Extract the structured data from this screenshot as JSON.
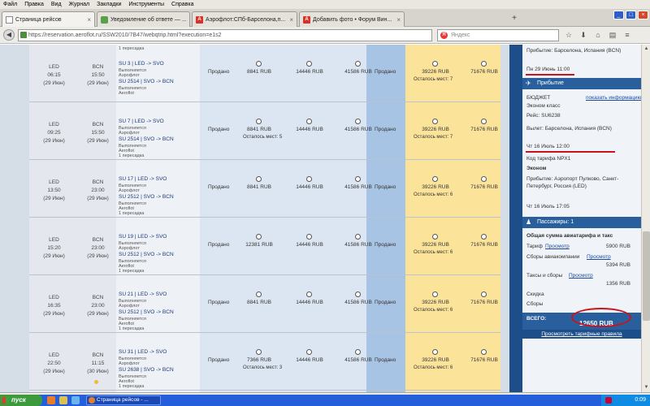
{
  "menu": [
    "Файл",
    "Правка",
    "Вид",
    "Журнал",
    "Закладки",
    "Инструменты",
    "Справка"
  ],
  "tabs": [
    {
      "label": "Страница рейсов",
      "icon": "page-icon"
    },
    {
      "label": "Уведомление об ответе — ...",
      "icon": "email-icon"
    },
    {
      "label": "Аэрофлот:СПб-Барселона,п...",
      "icon": "aeroflot-icon"
    },
    {
      "label": "Добавить фото • Форум Вин...",
      "icon": "aeroflot-icon"
    }
  ],
  "address": {
    "url": "https://reservation.aeroflot.ru/SSW2010/7B47/webqtrip.html?execution=e1s2",
    "search_placeholder": "Яндекс"
  },
  "flights": [
    {
      "dep_airport": "LED",
      "dep_time": "06:15",
      "dep_date": "(29 Июн)",
      "arr_airport": "BCN",
      "arr_time": "15:50",
      "arr_date": "(29 Июн)",
      "transfer": "1 пересадка",
      "segments": [
        {
          "flight": "SU 3",
          "route": "LED -> SVO",
          "op1": "Выполняется",
          "op2": "Аэрофлот"
        },
        {
          "flight": "SU 2514",
          "route": "SVO -> BCN",
          "op1": "Выполняется",
          "op2": "Aeroflot"
        }
      ],
      "sold": "Продано",
      "p1": "8841 RUB",
      "p2": "14446 RUB",
      "p3": "41586 RUB",
      "p4": "Продано",
      "p5": "39226 RUB",
      "p5_seats": "Осталось мест: 7",
      "p6": "71676 RUB"
    },
    {
      "dep_airport": "LED",
      "dep_time": "09:25",
      "dep_date": "(29 Июн)",
      "arr_airport": "BCN",
      "arr_time": "15:50",
      "arr_date": "(29 Июн)",
      "transfer": "1 пересадка",
      "segments": [
        {
          "flight": "SU 7",
          "route": "LED -> SVO",
          "op1": "Выполняется",
          "op2": "Аэрофлот"
        },
        {
          "flight": "SU 2514",
          "route": "SVO -> BCN",
          "op1": "Выполняется",
          "op2": "Aeroflot"
        }
      ],
      "sold": "Продано",
      "p1": "8841 RUB",
      "p1_seats": "Осталось мест: 5",
      "p2": "14446 RUB",
      "p3": "41586 RUB",
      "p4": "Продано",
      "p5": "39226 RUB",
      "p5_seats": "Осталось мест: 7",
      "p6": "71676 RUB"
    },
    {
      "dep_airport": "LED",
      "dep_time": "13:50",
      "dep_date": "(29 Июн)",
      "arr_airport": "BCN",
      "arr_time": "23:00",
      "arr_date": "(29 Июн)",
      "transfer": "1 пересадка",
      "segments": [
        {
          "flight": "SU 17",
          "route": "LED -> SVO",
          "op1": "Выполняется",
          "op2": "Аэрофлот"
        },
        {
          "flight": "SU 2512",
          "route": "SVO -> BCN",
          "op1": "Выполняется",
          "op2": "Aeroflot"
        }
      ],
      "sold": "Продано",
      "p1": "8841 RUB",
      "p2": "14446 RUB",
      "p3": "41586 RUB",
      "p4": "Продано",
      "p5": "39226 RUB",
      "p5_seats": "Осталось мест: 6",
      "p6": "71676 RUB"
    },
    {
      "dep_airport": "LED",
      "dep_time": "15:20",
      "dep_date": "(29 Июн)",
      "arr_airport": "BCN",
      "arr_time": "23:00",
      "arr_date": "(29 Июн)",
      "transfer": "1 пересадка",
      "segments": [
        {
          "flight": "SU 19",
          "route": "LED -> SVO",
          "op1": "Выполняется",
          "op2": "Аэрофлот"
        },
        {
          "flight": "SU 2512",
          "route": "SVO -> BCN",
          "op1": "Выполняется",
          "op2": "Aeroflot"
        }
      ],
      "sold": "Продано",
      "p1": "12381 RUB",
      "p2": "14446 RUB",
      "p3": "41586 RUB",
      "p4": "Продано",
      "p5": "39226 RUB",
      "p5_seats": "Осталось мест: 6",
      "p6": "71676 RUB"
    },
    {
      "dep_airport": "LED",
      "dep_time": "16:35",
      "dep_date": "(29 Июн)",
      "arr_airport": "BCN",
      "arr_time": "23:00",
      "arr_date": "(29 Июн)",
      "transfer": "1 пересадка",
      "segments": [
        {
          "flight": "SU 21",
          "route": "LED -> SVO",
          "op1": "Выполняется",
          "op2": "Аэрофлот"
        },
        {
          "flight": "SU 2512",
          "route": "SVO -> BCN",
          "op1": "Выполняется",
          "op2": "Aeroflot"
        }
      ],
      "sold": "Продано",
      "p1": "8841 RUB",
      "p2": "14446 RUB",
      "p3": "41586 RUB",
      "p4": "Продано",
      "p5": "39226 RUB",
      "p5_seats": "Осталось мест: 6",
      "p6": "71676 RUB"
    },
    {
      "dep_airport": "LED",
      "dep_time": "22:50",
      "dep_date": "(29 Июн)",
      "arr_airport": "BCN",
      "arr_time": "11:15",
      "arr_date": "(30 Июн)",
      "transfer": "1 пересадка",
      "segments": [
        {
          "flight": "SU 31",
          "route": "LED -> SVO",
          "op1": "Выполняется",
          "op2": "Аэрофлот"
        },
        {
          "flight": "SU 2638",
          "route": "SVO -> BCN",
          "op1": "Выполняется",
          "op2": "Aeroflot"
        }
      ],
      "sold": "Продано",
      "p1": "7366 RUB",
      "p1_seats": "Осталось мест: 3",
      "p2": "14446 RUB",
      "p3": "41586 RUB",
      "p4": "Продано",
      "p5": "39226 RUB",
      "p5_seats": "Осталось мест: 6",
      "p6": "71676 RUB"
    }
  ],
  "panel": {
    "arrival_top": "Прибытие: Барселона, Испания (BCN)",
    "arrival_top_date": "Пн 29 Июнь 11:00",
    "return_header": "Прибытие",
    "budget": "БЮДЖЕТ",
    "show_info": "показать информацию",
    "class": "Эконом класс",
    "flight": "Рейс: SU6238",
    "departure": "Вылет: Барселона, Испания (BCN)",
    "departure_date": "Чт 16 Июль 12:00",
    "fare_code": "Код тарифа NPX1",
    "economy": "Эконом",
    "arrival_line1": "Прибытие: Аэропорт Пулково, Санкт-",
    "arrival_line2": "Петербург, Россия (LED)",
    "arrival_date": "Чт 16 Июль 17:05",
    "passengers": "Пассажиры: 1",
    "total_title": "Общая сумма авиатарифа и такс",
    "fare_label": "Тариф",
    "fare_link": "Просмотр",
    "fare_value": "5900 RUB",
    "fees_label": "Сборы авиакомпании",
    "fees_link": "Просмотр",
    "fees_value": "5394 RUB",
    "taxes_label": "Таксы и сборы",
    "taxes_link": "Просмотр",
    "taxes_value": "1356 RUB",
    "discount": "Скидка",
    "charges": "Сборы",
    "total_label": "ВСЕГО:",
    "total_value": "12650 RUB",
    "rules_link": "Просмотреть тарифные правила"
  },
  "taskbar": {
    "start": "пуск",
    "task": "Страница рейсов - ...",
    "clock": "0:09"
  },
  "colors": {
    "sold_col": "#dce6f2",
    "highlight_col": "#a8c4e4",
    "flex_col": "#fce39a",
    "panel": "#1d4e8a"
  }
}
